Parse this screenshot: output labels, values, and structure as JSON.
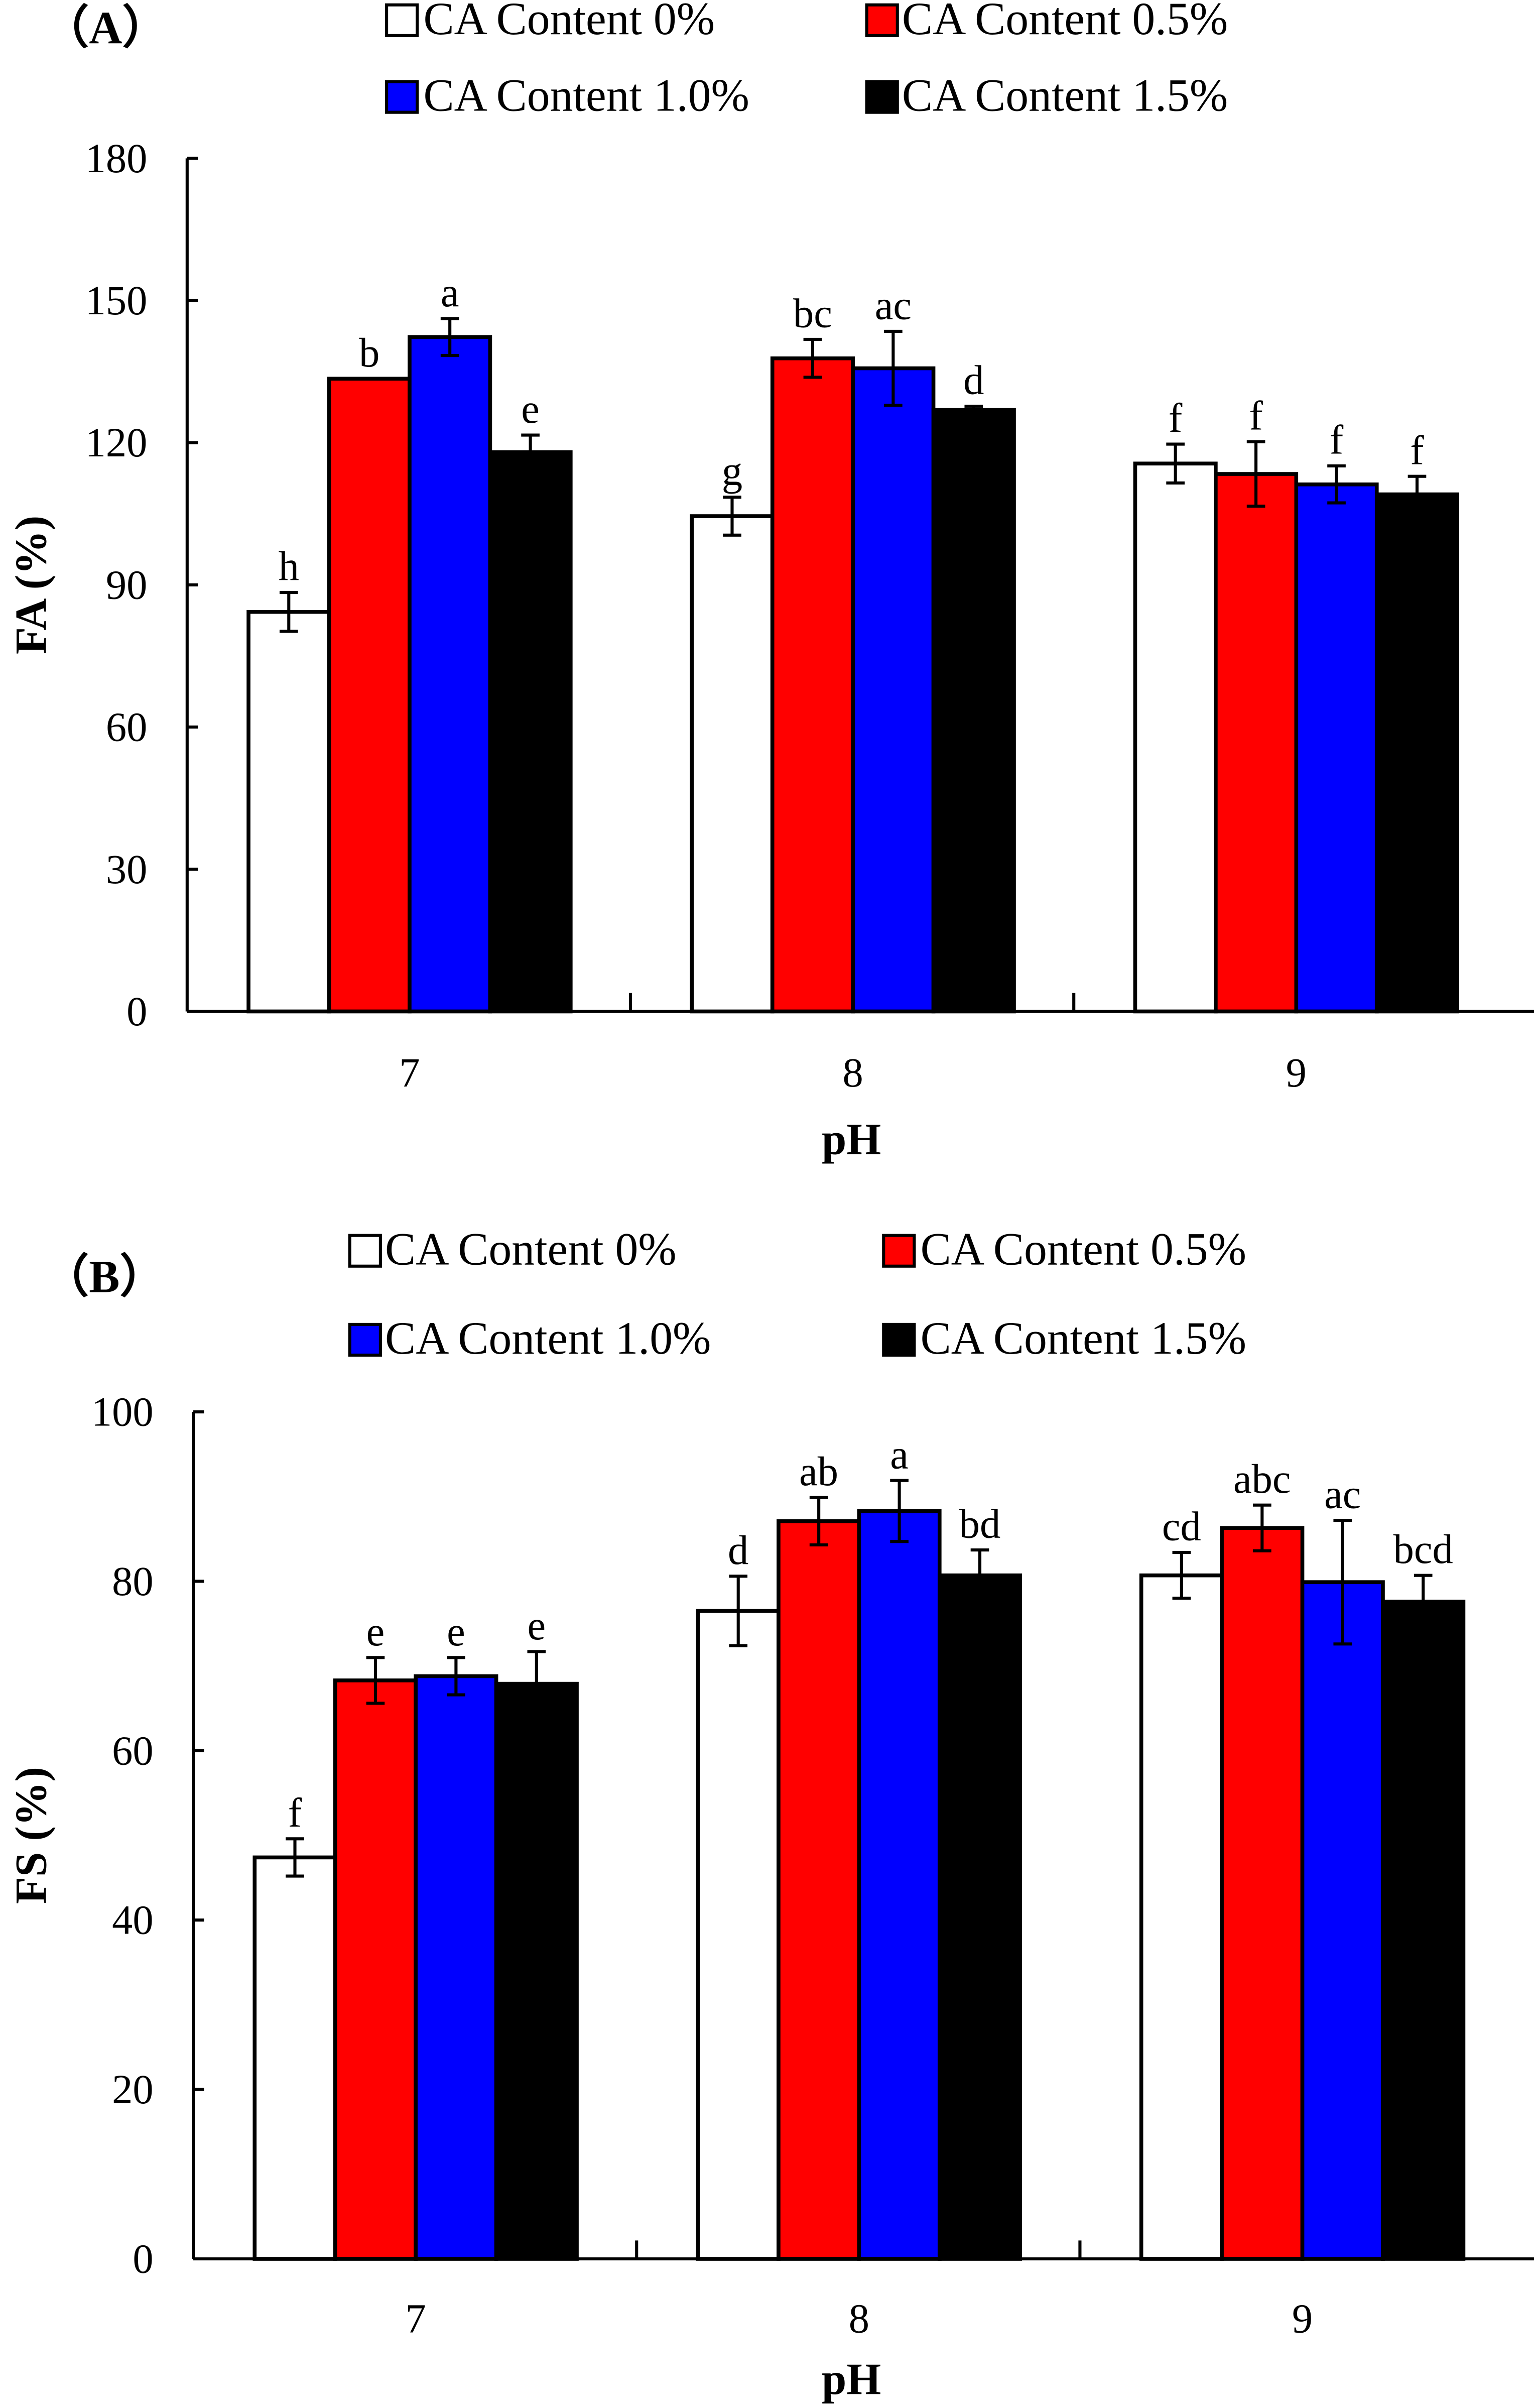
{
  "chart_data": [
    {
      "type": "bar",
      "panel_label": "（A）",
      "title": "",
      "xlabel": "pH",
      "ylabel": "FA (%)",
      "ylim": [
        0,
        180
      ],
      "yticks": [
        "0",
        "30",
        "60",
        "90",
        "120",
        "150",
        "180"
      ],
      "ytick_values": [
        0,
        30,
        60,
        90,
        120,
        150,
        180
      ],
      "categories": [
        "7",
        "8",
        "9"
      ],
      "legend_position": "top",
      "grid": false,
      "series": [
        {
          "name": "CA Content 0%",
          "color": "#ffffff",
          "values": [
            84.3,
            104.5,
            115.6
          ],
          "errors": [
            4.1,
            4.0,
            4.1
          ],
          "letters": [
            "h",
            "g",
            "f"
          ]
        },
        {
          "name": "CA Content 0.5%",
          "color": "#ff0000",
          "values": [
            133.5,
            137.8,
            113.4
          ],
          "errors": [
            0,
            4.0,
            6.8
          ],
          "letters": [
            "b",
            "bc",
            "f"
          ]
        },
        {
          "name": "CA Content 1.0%",
          "color": "#0000ff",
          "values": [
            142.3,
            135.7,
            111.2
          ],
          "errors": [
            3.9,
            7.8,
            3.9
          ],
          "letters": [
            "a",
            "ac",
            "f"
          ]
        },
        {
          "name": "CA Content 1.5%",
          "color": "#000000",
          "values": [
            118.0,
            126.9,
            109.1
          ],
          "errors": [
            3.6,
            0.8,
            3.8
          ],
          "letters": [
            "e",
            "d",
            "f"
          ]
        }
      ]
    },
    {
      "type": "bar",
      "panel_label": "（B）",
      "title": "",
      "xlabel": "pH",
      "ylabel": "FS (%)",
      "ylim": [
        0,
        100
      ],
      "yticks": [
        "0",
        "20",
        "40",
        "60",
        "80",
        "100"
      ],
      "ytick_values": [
        0,
        20,
        40,
        60,
        80,
        100
      ],
      "categories": [
        "7",
        "8",
        "9"
      ],
      "legend_position": "top",
      "grid": false,
      "series": [
        {
          "name": "CA Content 0%",
          "color": "#ffffff",
          "values": [
            47.4,
            76.5,
            80.7
          ],
          "errors": [
            2.2,
            4.1,
            2.7
          ],
          "letters": [
            "f",
            "d",
            "cd"
          ]
        },
        {
          "name": "CA Content 0.5%",
          "color": "#ff0000",
          "values": [
            68.3,
            87.1,
            86.3
          ],
          "errors": [
            2.7,
            2.8,
            2.7
          ],
          "letters": [
            "e",
            "ab",
            "abc"
          ]
        },
        {
          "name": "CA Content 1.0%",
          "color": "#0000ff",
          "values": [
            68.8,
            88.3,
            79.9
          ],
          "errors": [
            2.2,
            3.6,
            7.3
          ],
          "letters": [
            "e",
            "a",
            "ac"
          ]
        },
        {
          "name": "CA Content 1.5%",
          "color": "#000000",
          "values": [
            67.9,
            80.7,
            77.6
          ],
          "errors": [
            3.8,
            3.0,
            3.1
          ],
          "letters": [
            "e",
            "bd",
            "bcd"
          ]
        }
      ]
    }
  ]
}
